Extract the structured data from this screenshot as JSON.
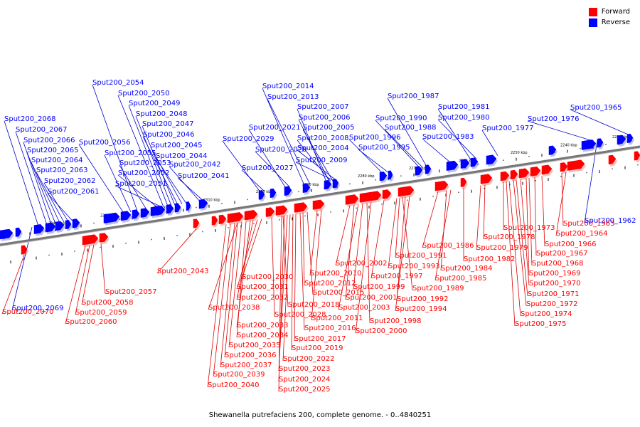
{
  "caption": "Shewanella putrefaciens 200, complete genome. - 0..4840251",
  "legend": [
    {
      "label": "Forward",
      "color": "#ff0000"
    },
    {
      "label": "Reverse",
      "color": "#0000ff"
    }
  ],
  "colors": {
    "forward": "#ff0000",
    "reverse": "#0000ff",
    "axis": "#777777",
    "forward_line": "#dd0000",
    "reverse_line": "#0000cc"
  },
  "ticks": [
    "2230 kbp",
    "2240 kbp",
    "2250 kbp",
    "2260 kbp",
    "2270 kbp",
    "2280 kbp",
    "2290 kbp",
    "2300 kbp",
    "2310 kbp",
    "2320 kbp",
    "2330 kbp",
    "2340 kbp"
  ],
  "reverse_genes": [
    "Sput200_2041",
    "Sput200_2042",
    "Sput200_2044",
    "Sput200_2045",
    "Sput200_2046",
    "Sput200_2047",
    "Sput200_2048",
    "Sput200_2049",
    "Sput200_2050",
    "Sput200_2051",
    "Sput200_2052",
    "Sput200_2053",
    "Sput200_2054",
    "Sput200_2055",
    "Sput200_2056",
    "Sput200_2061",
    "Sput200_2062",
    "Sput200_2063",
    "Sput200_2064",
    "Sput200_2065",
    "Sput200_2066",
    "Sput200_2067",
    "Sput200_2068",
    "Sput200_2069",
    "Sput200_2004",
    "Sput200_2005",
    "Sput200_2006",
    "Sput200_2007",
    "Sput200_2008",
    "Sput200_2009",
    "Sput200_2013",
    "Sput200_2014",
    "Sput200_2020",
    "Sput200_2021",
    "Sput200_2027",
    "Sput200_2029",
    "Sput200_1962",
    "Sput200_1965",
    "Sput200_1976",
    "Sput200_1977",
    "Sput200_1980",
    "Sput200_1981",
    "Sput200_1983",
    "Sput200_1987",
    "Sput200_1988",
    "Sput200_1990",
    "Sput200_1995",
    "Sput200_1996"
  ],
  "forward_genes": [
    "Sput200_2043",
    "Sput200_2057",
    "Sput200_2058",
    "Sput200_2059",
    "Sput200_2060",
    "Sput200_2070",
    "Sput200_2030",
    "Sput200_2031",
    "Sput200_2032",
    "Sput200_2038",
    "Sput200_2033",
    "Sput200_2034",
    "Sput200_2035",
    "Sput200_2036",
    "Sput200_2037",
    "Sput200_2039",
    "Sput200_2040",
    "Sput200_2028",
    "Sput200_2018",
    "Sput200_2016",
    "Sput200_2017",
    "Sput200_2019",
    "Sput200_2022",
    "Sput200_2023",
    "Sput200_2024",
    "Sput200_2025",
    "Sput200_2015",
    "Sput200_2012",
    "Sput200_2010",
    "Sput200_2011",
    "Sput200_2002",
    "Sput200_2001",
    "Sput200_2003",
    "Sput200_1999",
    "Sput200_1998",
    "Sput200_2000",
    "Sput200_1997",
    "Sput200_1993",
    "Sput200_1991",
    "Sput200_1989",
    "Sput200_1992",
    "Sput200_1994",
    "Sput200_1986",
    "Sput200_1984",
    "Sput200_1985",
    "Sput200_1982",
    "Sput200_1979",
    "Sput200_1978",
    "Sput200_1973",
    "Sput200_1964",
    "Sput200_1963",
    "Sput200_1966",
    "Sput200_1967",
    "Sput200_1968",
    "Sput200_1969",
    "Sput200_1970",
    "Sput200_1971",
    "Sput200_1972",
    "Sput200_1974",
    "Sput200_1975"
  ]
}
